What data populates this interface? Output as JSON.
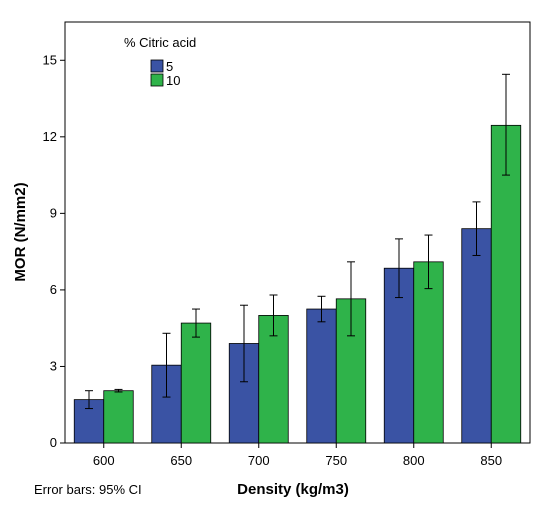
{
  "chart_data": {
    "type": "bar",
    "xlabel": "Density (kg/m3)",
    "ylabel": "MOR (N/mm2)",
    "categories": [
      "600",
      "650",
      "700",
      "750",
      "800",
      "850"
    ],
    "ylim": [
      0,
      16.5
    ],
    "yticks": [
      "0",
      "3",
      "6",
      "9",
      "12",
      "15"
    ],
    "grid": false,
    "legend": {
      "title": "% Citric acid",
      "placement": "top-left"
    },
    "series": [
      {
        "name": "5",
        "color": "#3a53a4",
        "values": [
          1.7,
          3.05,
          3.9,
          5.25,
          6.85,
          8.4
        ],
        "error_low": [
          1.35,
          1.8,
          2.4,
          4.75,
          5.7,
          7.35
        ],
        "error_high": [
          2.05,
          4.3,
          5.4,
          5.75,
          8.0,
          9.45
        ]
      },
      {
        "name": "10",
        "color": "#2fb34a",
        "values": [
          2.05,
          4.7,
          5.0,
          5.65,
          7.1,
          12.45
        ],
        "error_low": [
          2.0,
          4.15,
          4.2,
          4.2,
          6.05,
          10.5
        ],
        "error_high": [
          2.1,
          5.25,
          5.8,
          7.1,
          8.15,
          14.45
        ]
      }
    ],
    "note": "Error bars: 95% CI"
  }
}
